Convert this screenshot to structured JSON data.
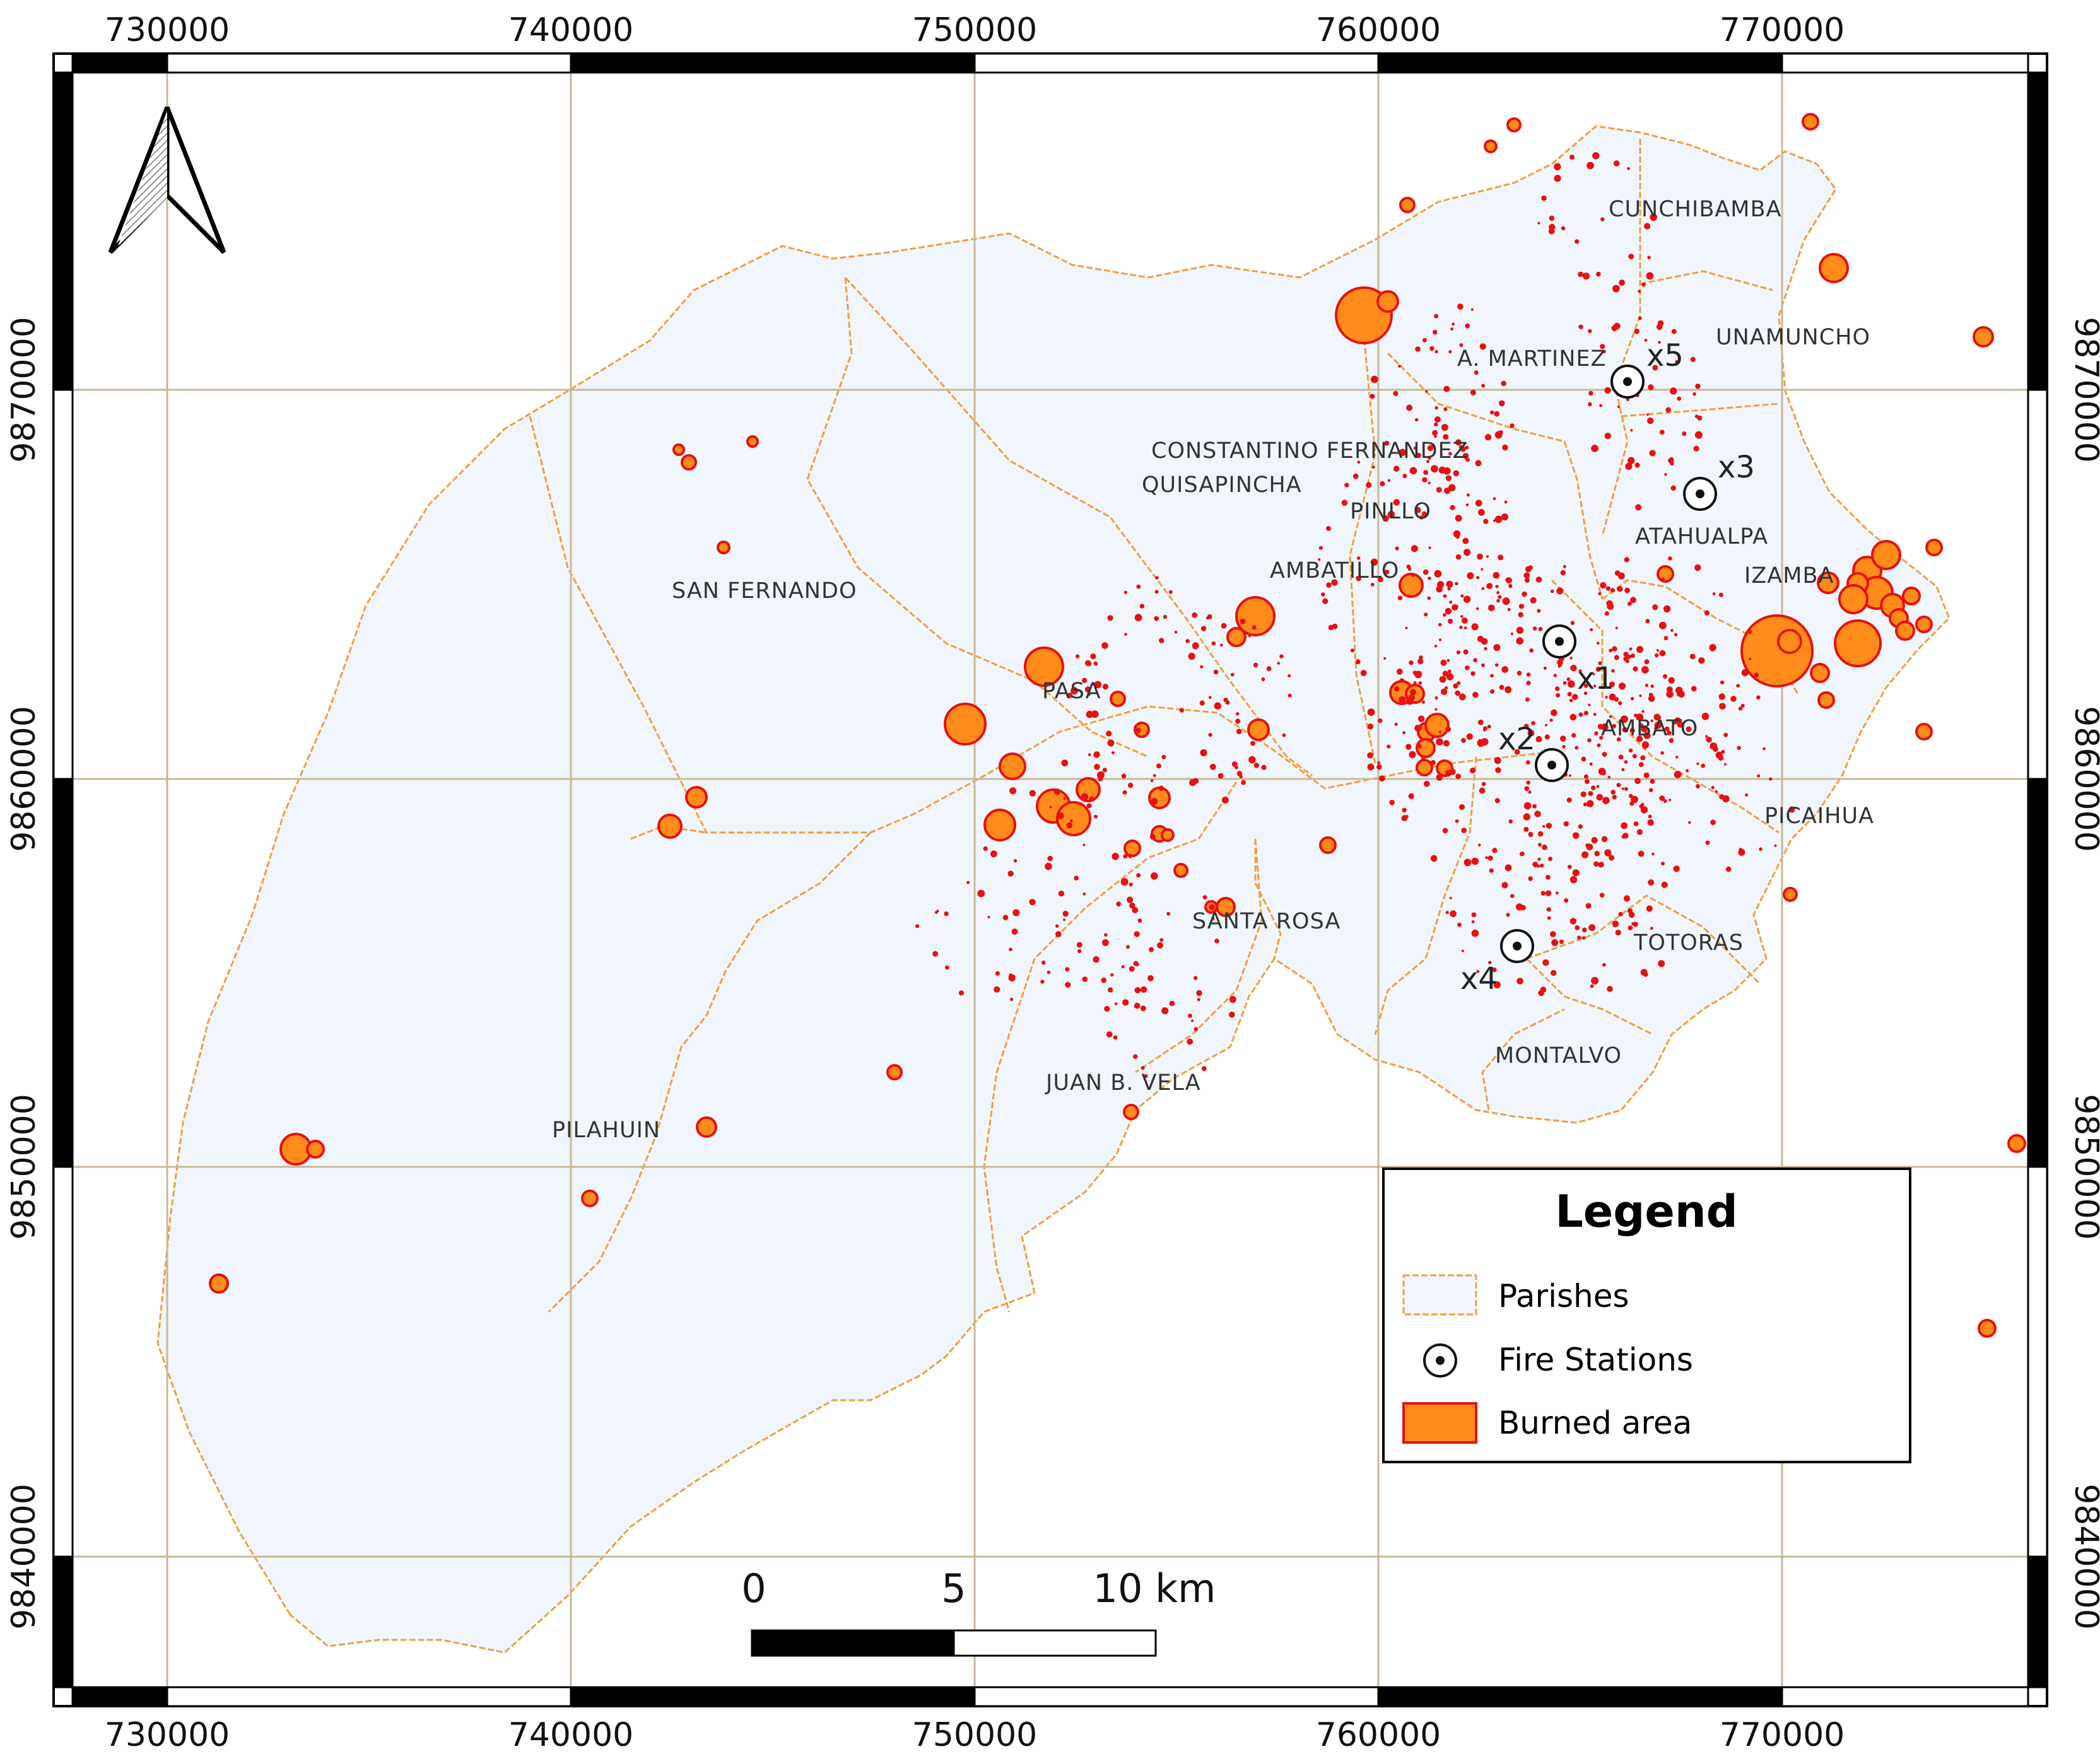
{
  "map": {
    "x_ticks": [
      "730000",
      "740000",
      "750000",
      "760000",
      "770000"
    ],
    "y_ticks": [
      "9870000",
      "9860000",
      "9850000",
      "9840000"
    ],
    "north_arrow": "north-arrow-icon"
  },
  "parishes": [
    {
      "name": "CUNCHIBAMBA"
    },
    {
      "name": "UNAMUNCHO"
    },
    {
      "name": "A. MARTINEZ"
    },
    {
      "name": "CONSTANTINO FERNANDEZ"
    },
    {
      "name": "QUISAPINCHA"
    },
    {
      "name": "PINLLO"
    },
    {
      "name": "ATAHUALPA"
    },
    {
      "name": "IZAMBA"
    },
    {
      "name": "AMBATILLO"
    },
    {
      "name": "SAN FERNANDO"
    },
    {
      "name": "PASA"
    },
    {
      "name": "AMBATO"
    },
    {
      "name": "PICAIHUA"
    },
    {
      "name": "SANTA ROSA"
    },
    {
      "name": "TOTORAS"
    },
    {
      "name": "JUAN B. VELA"
    },
    {
      "name": "MONTALVO"
    },
    {
      "name": "PILAHUIN"
    }
  ],
  "fire_stations": [
    {
      "label": "x1"
    },
    {
      "label": "x2"
    },
    {
      "label": "x3"
    },
    {
      "label": "x4"
    },
    {
      "label": "x5"
    }
  ],
  "scale_bar": {
    "labels": [
      "0",
      "5",
      "10 km"
    ]
  },
  "legend": {
    "title": "Legend",
    "items": [
      {
        "label": "Parishes",
        "symbol": "parish-polygon"
      },
      {
        "label": "Fire Stations",
        "symbol": "fire-station-icon"
      },
      {
        "label": "Burned area",
        "symbol": "burned-area-swatch"
      }
    ]
  },
  "colors": {
    "parish_fill": "#f0f6fc",
    "parish_border": "#f0a040",
    "burned_fill": "#ff8c1a",
    "burned_stroke": "#e81010",
    "grid": "#c9b896"
  }
}
